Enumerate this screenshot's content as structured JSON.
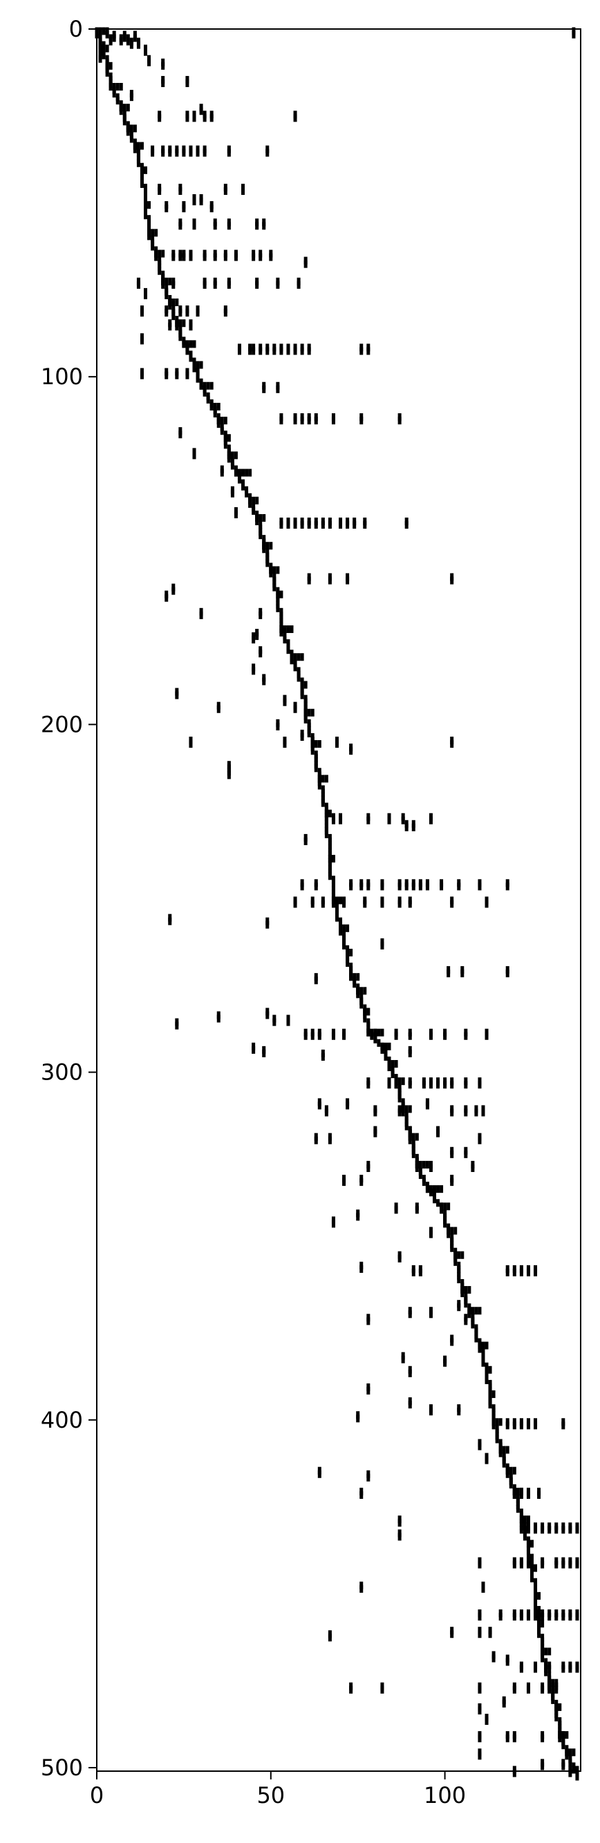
{
  "chart_data": {
    "type": "heatmap",
    "description_kind": "sparse binary matrix (spy plot)",
    "title": "",
    "xlabel": "",
    "ylabel": "",
    "x_range": [
      0,
      139
    ],
    "y_range": [
      0,
      501
    ],
    "y_inverted": true,
    "grid": false,
    "x_ticks": [
      0,
      50,
      100
    ],
    "y_ticks": [
      0,
      100,
      200,
      300,
      400,
      500
    ],
    "diagonal_path": [
      [
        0,
        0
      ],
      [
        2,
        5
      ],
      [
        3,
        10
      ],
      [
        4,
        16
      ],
      [
        7,
        22
      ],
      [
        9,
        28
      ],
      [
        11,
        33
      ],
      [
        13,
        40
      ],
      [
        14,
        50
      ],
      [
        15,
        58
      ],
      [
        17,
        64
      ],
      [
        19,
        72
      ],
      [
        21,
        78
      ],
      [
        23,
        84
      ],
      [
        25,
        90
      ],
      [
        28,
        96
      ],
      [
        30,
        102
      ],
      [
        33,
        108
      ],
      [
        35,
        112
      ],
      [
        37,
        117
      ],
      [
        38,
        122
      ],
      [
        40,
        127
      ],
      [
        44,
        135
      ],
      [
        46,
        140
      ],
      [
        48,
        148
      ],
      [
        50,
        155
      ],
      [
        52,
        162
      ],
      [
        53,
        172
      ],
      [
        56,
        180
      ],
      [
        59,
        188
      ],
      [
        60,
        196
      ],
      [
        62,
        205
      ],
      [
        64,
        215
      ],
      [
        66,
        225
      ],
      [
        67,
        238
      ],
      [
        68,
        250
      ],
      [
        70,
        258
      ],
      [
        72,
        265
      ],
      [
        73,
        272
      ],
      [
        75,
        276
      ],
      [
        77,
        282
      ],
      [
        78,
        288
      ],
      [
        82,
        292
      ],
      [
        84,
        297
      ],
      [
        86,
        302
      ],
      [
        88,
        310
      ],
      [
        90,
        318
      ],
      [
        92,
        326
      ],
      [
        95,
        333
      ],
      [
        99,
        338
      ],
      [
        101,
        345
      ],
      [
        103,
        352
      ],
      [
        105,
        362
      ],
      [
        107,
        368
      ],
      [
        110,
        378
      ],
      [
        112,
        385
      ],
      [
        113,
        392
      ],
      [
        114,
        400
      ],
      [
        116,
        408
      ],
      [
        118,
        414
      ],
      [
        120,
        420
      ],
      [
        122,
        428
      ],
      [
        124,
        435
      ],
      [
        125,
        442
      ],
      [
        126,
        450
      ],
      [
        127,
        458
      ],
      [
        128,
        466
      ],
      [
        130,
        475
      ],
      [
        132,
        482
      ],
      [
        133,
        490
      ],
      [
        135,
        495
      ],
      [
        137,
        500
      ],
      [
        138,
        501
      ]
    ],
    "off_diagonal_points": [
      [
        10,
        3
      ],
      [
        12,
        3
      ],
      [
        14,
        5
      ],
      [
        15,
        8
      ],
      [
        19,
        9
      ],
      [
        19,
        14
      ],
      [
        26,
        14
      ],
      [
        30,
        22
      ],
      [
        10,
        18
      ],
      [
        18,
        24
      ],
      [
        26,
        24
      ],
      [
        28,
        24
      ],
      [
        31,
        24
      ],
      [
        33,
        24
      ],
      [
        57,
        24
      ],
      [
        16,
        34
      ],
      [
        19,
        34
      ],
      [
        21,
        34
      ],
      [
        23,
        34
      ],
      [
        25,
        34
      ],
      [
        27,
        34
      ],
      [
        29,
        34
      ],
      [
        31,
        34
      ],
      [
        38,
        34
      ],
      [
        49,
        34
      ],
      [
        18,
        45
      ],
      [
        20,
        50
      ],
      [
        24,
        45
      ],
      [
        25,
        50
      ],
      [
        28,
        48
      ],
      [
        30,
        48
      ],
      [
        33,
        50
      ],
      [
        37,
        45
      ],
      [
        42,
        45
      ],
      [
        24,
        55
      ],
      [
        28,
        55
      ],
      [
        34,
        55
      ],
      [
        38,
        55
      ],
      [
        46,
        55
      ],
      [
        48,
        55
      ],
      [
        22,
        64
      ],
      [
        24,
        64
      ],
      [
        25,
        64
      ],
      [
        27,
        64
      ],
      [
        31,
        64
      ],
      [
        34,
        64
      ],
      [
        37,
        64
      ],
      [
        40,
        64
      ],
      [
        45,
        64
      ],
      [
        47,
        64
      ],
      [
        50,
        64
      ],
      [
        60,
        66
      ],
      [
        12,
        72
      ],
      [
        14,
        75
      ],
      [
        22,
        72
      ],
      [
        31,
        72
      ],
      [
        34,
        72
      ],
      [
        38,
        72
      ],
      [
        46,
        72
      ],
      [
        52,
        72
      ],
      [
        58,
        72
      ],
      [
        13,
        80
      ],
      [
        20,
        80
      ],
      [
        24,
        80
      ],
      [
        26,
        80
      ],
      [
        29,
        80
      ],
      [
        37,
        80
      ],
      [
        13,
        88
      ],
      [
        21,
        84
      ],
      [
        27,
        84
      ],
      [
        41,
        91
      ],
      [
        44,
        91
      ],
      [
        45,
        91
      ],
      [
        47,
        91
      ],
      [
        49,
        91
      ],
      [
        51,
        91
      ],
      [
        53,
        91
      ],
      [
        55,
        91
      ],
      [
        57,
        91
      ],
      [
        59,
        91
      ],
      [
        61,
        91
      ],
      [
        76,
        91
      ],
      [
        78,
        91
      ],
      [
        13,
        98
      ],
      [
        20,
        98
      ],
      [
        23,
        98
      ],
      [
        26,
        98
      ],
      [
        29,
        98
      ],
      [
        48,
        102
      ],
      [
        52,
        102
      ],
      [
        53,
        111
      ],
      [
        57,
        111
      ],
      [
        59,
        111
      ],
      [
        61,
        111
      ],
      [
        63,
        111
      ],
      [
        68,
        111
      ],
      [
        76,
        111
      ],
      [
        87,
        111
      ],
      [
        24,
        115
      ],
      [
        28,
        121
      ],
      [
        36,
        126
      ],
      [
        39,
        132
      ],
      [
        40,
        138
      ],
      [
        53,
        141
      ],
      [
        55,
        141
      ],
      [
        57,
        141
      ],
      [
        59,
        141
      ],
      [
        61,
        141
      ],
      [
        63,
        141
      ],
      [
        65,
        141
      ],
      [
        67,
        141
      ],
      [
        70,
        141
      ],
      [
        72,
        141
      ],
      [
        74,
        141
      ],
      [
        77,
        141
      ],
      [
        89,
        141
      ],
      [
        61,
        157
      ],
      [
        67,
        157
      ],
      [
        72,
        157
      ],
      [
        102,
        157
      ],
      [
        20,
        162
      ],
      [
        22,
        160
      ],
      [
        30,
        167
      ],
      [
        47,
        167
      ],
      [
        46,
        173
      ],
      [
        45,
        174
      ],
      [
        47,
        178
      ],
      [
        45,
        183
      ],
      [
        23,
        190
      ],
      [
        35,
        194
      ],
      [
        48,
        186
      ],
      [
        54,
        192
      ],
      [
        57,
        194
      ],
      [
        52,
        199
      ],
      [
        27,
        204
      ],
      [
        38,
        211
      ],
      [
        38,
        213
      ],
      [
        54,
        204
      ],
      [
        59,
        202
      ],
      [
        62,
        204
      ],
      [
        69,
        204
      ],
      [
        73,
        206
      ],
      [
        102,
        204
      ],
      [
        60,
        232
      ],
      [
        68,
        226
      ],
      [
        70,
        226
      ],
      [
        78,
        226
      ],
      [
        84,
        226
      ],
      [
        88,
        226
      ],
      [
        89,
        228
      ],
      [
        91,
        228
      ],
      [
        96,
        226
      ],
      [
        59,
        245
      ],
      [
        63,
        245
      ],
      [
        57,
        250
      ],
      [
        73,
        245
      ],
      [
        76,
        245
      ],
      [
        78,
        245
      ],
      [
        82,
        245
      ],
      [
        87,
        245
      ],
      [
        89,
        245
      ],
      [
        91,
        245
      ],
      [
        93,
        245
      ],
      [
        95,
        245
      ],
      [
        99,
        245
      ],
      [
        104,
        245
      ],
      [
        110,
        245
      ],
      [
        118,
        245
      ],
      [
        21,
        255
      ],
      [
        49,
        256
      ],
      [
        62,
        250
      ],
      [
        65,
        250
      ],
      [
        71,
        250
      ],
      [
        77,
        250
      ],
      [
        82,
        250
      ],
      [
        87,
        250
      ],
      [
        90,
        250
      ],
      [
        102,
        250
      ],
      [
        112,
        250
      ],
      [
        82,
        262
      ],
      [
        101,
        270
      ],
      [
        105,
        270
      ],
      [
        118,
        270
      ],
      [
        63,
        272
      ],
      [
        23,
        285
      ],
      [
        35,
        283
      ],
      [
        49,
        282
      ],
      [
        51,
        284
      ],
      [
        55,
        284
      ],
      [
        60,
        288
      ],
      [
        62,
        288
      ],
      [
        64,
        288
      ],
      [
        68,
        288
      ],
      [
        71,
        288
      ],
      [
        80,
        288
      ],
      [
        86,
        288
      ],
      [
        90,
        288
      ],
      [
        96,
        288
      ],
      [
        100,
        288
      ],
      [
        106,
        288
      ],
      [
        112,
        288
      ],
      [
        45,
        292
      ],
      [
        48,
        293
      ],
      [
        65,
        294
      ],
      [
        90,
        293
      ],
      [
        78,
        302
      ],
      [
        84,
        302
      ],
      [
        86,
        302
      ],
      [
        90,
        302
      ],
      [
        94,
        302
      ],
      [
        96,
        302
      ],
      [
        98,
        302
      ],
      [
        100,
        302
      ],
      [
        102,
        302
      ],
      [
        106,
        302
      ],
      [
        110,
        302
      ],
      [
        64,
        308
      ],
      [
        66,
        310
      ],
      [
        72,
        308
      ],
      [
        80,
        310
      ],
      [
        87,
        310
      ],
      [
        95,
        308
      ],
      [
        102,
        310
      ],
      [
        106,
        310
      ],
      [
        109,
        310
      ],
      [
        111,
        310
      ],
      [
        63,
        318
      ],
      [
        67,
        318
      ],
      [
        80,
        316
      ],
      [
        90,
        316
      ],
      [
        98,
        316
      ],
      [
        110,
        318
      ],
      [
        71,
        330
      ],
      [
        76,
        330
      ],
      [
        78,
        326
      ],
      [
        96,
        326
      ],
      [
        102,
        322
      ],
      [
        106,
        322
      ],
      [
        108,
        326
      ],
      [
        68,
        342
      ],
      [
        75,
        340
      ],
      [
        86,
        338
      ],
      [
        92,
        338
      ],
      [
        96,
        345
      ],
      [
        102,
        330
      ],
      [
        76,
        355
      ],
      [
        87,
        352
      ],
      [
        91,
        356
      ],
      [
        93,
        356
      ],
      [
        118,
        356
      ],
      [
        120,
        356
      ],
      [
        122,
        356
      ],
      [
        124,
        356
      ],
      [
        126,
        356
      ],
      [
        78,
        370
      ],
      [
        90,
        368
      ],
      [
        96,
        368
      ],
      [
        104,
        366
      ],
      [
        88,
        381
      ],
      [
        90,
        385
      ],
      [
        100,
        382
      ],
      [
        102,
        376
      ],
      [
        106,
        370
      ],
      [
        78,
        390
      ],
      [
        75,
        398
      ],
      [
        90,
        394
      ],
      [
        96,
        396
      ],
      [
        104,
        396
      ],
      [
        110,
        406
      ],
      [
        112,
        410
      ],
      [
        118,
        400
      ],
      [
        120,
        400
      ],
      [
        122,
        400
      ],
      [
        124,
        400
      ],
      [
        126,
        400
      ],
      [
        134,
        400
      ],
      [
        78,
        415
      ],
      [
        76,
        420
      ],
      [
        64,
        414
      ],
      [
        87,
        428
      ],
      [
        87,
        432
      ],
      [
        120,
        420
      ],
      [
        122,
        420
      ],
      [
        124,
        420
      ],
      [
        127,
        420
      ],
      [
        110,
        440
      ],
      [
        111,
        447
      ],
      [
        122,
        430
      ],
      [
        124,
        430
      ],
      [
        126,
        430
      ],
      [
        128,
        430
      ],
      [
        130,
        430
      ],
      [
        132,
        430
      ],
      [
        134,
        430
      ],
      [
        136,
        430
      ],
      [
        138,
        430
      ],
      [
        120,
        440
      ],
      [
        122,
        440
      ],
      [
        124,
        440
      ],
      [
        128,
        440
      ],
      [
        132,
        440
      ],
      [
        134,
        440
      ],
      [
        136,
        440
      ],
      [
        138,
        440
      ],
      [
        76,
        447
      ],
      [
        110,
        455
      ],
      [
        110,
        460
      ],
      [
        116,
        455
      ],
      [
        120,
        455
      ],
      [
        122,
        455
      ],
      [
        124,
        455
      ],
      [
        126,
        455
      ],
      [
        128,
        455
      ],
      [
        130,
        455
      ],
      [
        132,
        455
      ],
      [
        134,
        455
      ],
      [
        136,
        455
      ],
      [
        138,
        455
      ],
      [
        67,
        461
      ],
      [
        102,
        460
      ],
      [
        113,
        460
      ],
      [
        114,
        467
      ],
      [
        118,
        468
      ],
      [
        122,
        470
      ],
      [
        126,
        470
      ],
      [
        130,
        470
      ],
      [
        134,
        470
      ],
      [
        136,
        470
      ],
      [
        138,
        470
      ],
      [
        73,
        476
      ],
      [
        82,
        476
      ],
      [
        110,
        476
      ],
      [
        110,
        482
      ],
      [
        117,
        480
      ],
      [
        120,
        476
      ],
      [
        124,
        476
      ],
      [
        128,
        476
      ],
      [
        130,
        476
      ],
      [
        132,
        476
      ],
      [
        110,
        490
      ],
      [
        112,
        485
      ],
      [
        118,
        490
      ],
      [
        120,
        490
      ],
      [
        128,
        490
      ],
      [
        134,
        490
      ],
      [
        110,
        495
      ],
      [
        120,
        500
      ],
      [
        128,
        498
      ],
      [
        134,
        498
      ],
      [
        136,
        500
      ],
      [
        138,
        501
      ],
      [
        137,
        0
      ],
      [
        1,
        4
      ],
      [
        1,
        7
      ],
      [
        3,
        0
      ],
      [
        4,
        2
      ],
      [
        5,
        1
      ],
      [
        7,
        2
      ],
      [
        8,
        1
      ],
      [
        9,
        2
      ],
      [
        11,
        1
      ]
    ]
  }
}
